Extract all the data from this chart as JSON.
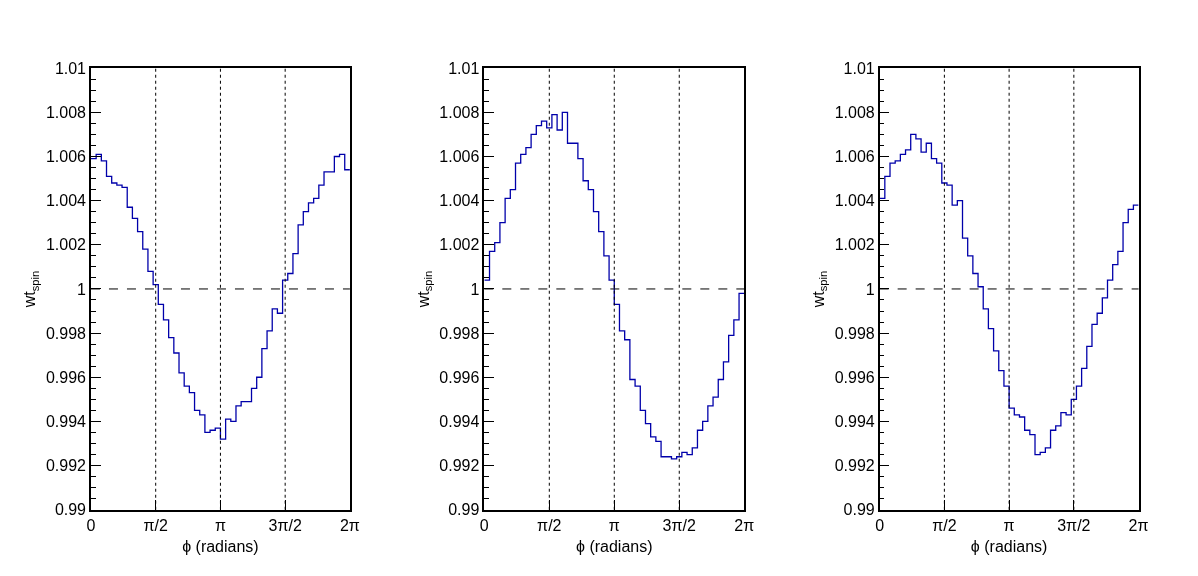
{
  "chart_data": [
    {
      "type": "histogram",
      "color": "#0000aa",
      "xlabel": "ϕ (radians)",
      "ylabel": "wt$_{spin}$",
      "line_style": "solid",
      "bins": [
        0,
        0.1257,
        0.2513,
        0.377,
        0.5027,
        0.6283,
        0.754,
        0.8796,
        1.0053,
        1.131,
        1.2566,
        1.3823,
        1.508,
        1.6336,
        1.7593,
        1.885,
        2.0106,
        2.1363,
        2.2619,
        2.3876,
        2.5133,
        2.6389,
        2.7646,
        2.8903,
        3.0159,
        3.1416,
        3.2673,
        3.3929,
        3.5186,
        3.6442,
        3.7699,
        3.8956,
        4.0212,
        4.1469,
        4.2726,
        4.3982,
        4.5239,
        4.6496,
        4.7752,
        4.9009,
        5.0265,
        5.1522,
        5.2779,
        5.4035,
        5.5292,
        5.6549,
        5.7805,
        5.9062,
        6.0319,
        6.1575,
        6.2832
      ],
      "values": [
        1.0059,
        1.0061,
        1.0058,
        1.0051,
        1.0048,
        1.0047,
        1.0046,
        1.0037,
        1.0032,
        1.0026,
        1.0018,
        1.0008,
        1.0002,
        0.9993,
        0.9986,
        0.9978,
        0.9971,
        0.9962,
        0.9956,
        0.9953,
        0.9945,
        0.9943,
        0.9935,
        0.9936,
        0.9937,
        0.9932,
        0.9941,
        0.994,
        0.9947,
        0.9949,
        0.9949,
        0.9955,
        0.996,
        0.9973,
        0.9981,
        0.9991,
        0.9989,
        1.0004,
        1.0007,
        1.0016,
        1.0029,
        1.0035,
        1.0039,
        1.0041,
        1.0047,
        1.0053,
        1.0053,
        1.006,
        1.0061,
        1.0054
      ],
      "xlim": [
        0,
        6.2832
      ],
      "xticks": [
        0,
        {
          "value": 1.5708,
          "label": "π/2"
        },
        {
          "value": 3.1416,
          "label": "π"
        },
        {
          "value": 4.7124,
          "label": "3π/2"
        },
        {
          "value": 6.2832,
          "label": "2π"
        }
      ],
      "ylim": [
        0.99,
        1.01
      ],
      "yticks": [
        0.99,
        0.992,
        0.994,
        0.996,
        0.998,
        1,
        1.002,
        1.004,
        1.006,
        1.008,
        1.01
      ],
      "ref_lines": [
        {
          "axis": "y",
          "value": 1,
          "line_style": "dashed",
          "color": "#000000"
        },
        {
          "axis": "x",
          "value": 1.5708,
          "line_style": "dotted",
          "color": "#000000"
        },
        {
          "axis": "x",
          "value": 3.1416,
          "line_style": "dotted",
          "color": "#000000"
        },
        {
          "axis": "x",
          "value": 4.7124,
          "line_style": "dotted",
          "color": "#000000"
        }
      ]
    },
    {
      "type": "histogram",
      "color": "#0000aa",
      "xlabel": "ϕ (radians)",
      "ylabel": "wt$_{spin}$",
      "line_style": "solid",
      "bins": [
        0,
        0.1257,
        0.2513,
        0.377,
        0.5027,
        0.6283,
        0.754,
        0.8796,
        1.0053,
        1.131,
        1.2566,
        1.3823,
        1.508,
        1.6336,
        1.7593,
        1.885,
        2.0106,
        2.1363,
        2.2619,
        2.3876,
        2.5133,
        2.6389,
        2.7646,
        2.8903,
        3.0159,
        3.1416,
        3.2673,
        3.3929,
        3.5186,
        3.6442,
        3.7699,
        3.8956,
        4.0212,
        4.1469,
        4.2726,
        4.3982,
        4.5239,
        4.6496,
        4.7752,
        4.9009,
        5.0265,
        5.1522,
        5.2779,
        5.4035,
        5.5292,
        5.6549,
        5.7805,
        5.9062,
        6.0319,
        6.1575,
        6.2832
      ],
      "values": [
        1.0004,
        1.0017,
        1.0021,
        1.003,
        1.0041,
        1.0045,
        1.0057,
        1.0061,
        1.0064,
        1.007,
        1.0074,
        1.0076,
        1.0073,
        1.0079,
        1.0072,
        1.008,
        1.0066,
        1.0066,
        1.0059,
        1.0049,
        1.0045,
        1.0035,
        1.0026,
        1.0015,
        1.0004,
        0.9993,
        0.9981,
        0.9977,
        0.9959,
        0.9956,
        0.9945,
        0.9939,
        0.9933,
        0.9931,
        0.9924,
        0.9924,
        0.9923,
        0.9924,
        0.9926,
        0.9925,
        0.9928,
        0.9936,
        0.994,
        0.9947,
        0.9951,
        0.9959,
        0.9967,
        0.9979,
        0.9986,
        0.9998
      ],
      "xlim": [
        0,
        6.2832
      ],
      "xticks": [
        0,
        {
          "value": 1.5708,
          "label": "π/2"
        },
        {
          "value": 3.1416,
          "label": "π"
        },
        {
          "value": 4.7124,
          "label": "3π/2"
        },
        {
          "value": 6.2832,
          "label": "2π"
        }
      ],
      "ylim": [
        0.99,
        1.01
      ],
      "yticks": [
        0.99,
        0.992,
        0.994,
        0.996,
        0.998,
        1,
        1.002,
        1.004,
        1.006,
        1.008,
        1.01
      ],
      "ref_lines": [
        {
          "axis": "y",
          "value": 1,
          "line_style": "dashed",
          "color": "#000000"
        },
        {
          "axis": "x",
          "value": 1.5708,
          "line_style": "dotted",
          "color": "#000000"
        },
        {
          "axis": "x",
          "value": 3.1416,
          "line_style": "dotted",
          "color": "#000000"
        },
        {
          "axis": "x",
          "value": 4.7124,
          "line_style": "dotted",
          "color": "#000000"
        }
      ]
    },
    {
      "type": "histogram",
      "color": "#0000aa",
      "xlabel": "ϕ (radians)",
      "ylabel": "wt$_{spin}$",
      "line_style": "solid",
      "bins": [
        0,
        0.1257,
        0.2513,
        0.377,
        0.5027,
        0.6283,
        0.754,
        0.8796,
        1.0053,
        1.131,
        1.2566,
        1.3823,
        1.508,
        1.6336,
        1.7593,
        1.885,
        2.0106,
        2.1363,
        2.2619,
        2.3876,
        2.5133,
        2.6389,
        2.7646,
        2.8903,
        3.0159,
        3.1416,
        3.2673,
        3.3929,
        3.5186,
        3.6442,
        3.7699,
        3.8956,
        4.0212,
        4.1469,
        4.2726,
        4.3982,
        4.5239,
        4.6496,
        4.7752,
        4.9009,
        5.0265,
        5.1522,
        5.2779,
        5.4035,
        5.5292,
        5.6549,
        5.7805,
        5.9062,
        6.0319,
        6.1575,
        6.2832
      ],
      "values": [
        1.0041,
        1.0051,
        1.0057,
        1.0058,
        1.0061,
        1.0063,
        1.007,
        1.0068,
        1.0062,
        1.0066,
        1.0059,
        1.0057,
        1.0048,
        1.0047,
        1.0038,
        1.004,
        1.0023,
        1.0015,
        1.0007,
        1.0001,
        0.9991,
        0.9982,
        0.9972,
        0.9963,
        0.9956,
        0.9946,
        0.9943,
        0.9942,
        0.9936,
        0.9934,
        0.9925,
        0.9926,
        0.9928,
        0.9936,
        0.9938,
        0.9944,
        0.9943,
        0.995,
        0.9956,
        0.9964,
        0.9974,
        0.9984,
        0.9989,
        0.9996,
        1.0004,
        1.0011,
        1.0017,
        1.003,
        1.0036,
        1.0038
      ],
      "xlim": [
        0,
        6.2832
      ],
      "xticks": [
        0,
        {
          "value": 1.5708,
          "label": "π/2"
        },
        {
          "value": 3.1416,
          "label": "π"
        },
        {
          "value": 4.7124,
          "label": "3π/2"
        },
        {
          "value": 6.2832,
          "label": "2π"
        }
      ],
      "ylim": [
        0.99,
        1.01
      ],
      "yticks": [
        0.99,
        0.992,
        0.994,
        0.996,
        0.998,
        1,
        1.002,
        1.004,
        1.006,
        1.008,
        1.01
      ],
      "ref_lines": [
        {
          "axis": "y",
          "value": 1,
          "line_style": "dashed",
          "color": "#000000"
        },
        {
          "axis": "x",
          "value": 1.5708,
          "line_style": "dotted",
          "color": "#000000"
        },
        {
          "axis": "x",
          "value": 3.1416,
          "line_style": "dotted",
          "color": "#000000"
        },
        {
          "axis": "x",
          "value": 4.7124,
          "line_style": "dotted",
          "color": "#000000"
        }
      ]
    }
  ]
}
